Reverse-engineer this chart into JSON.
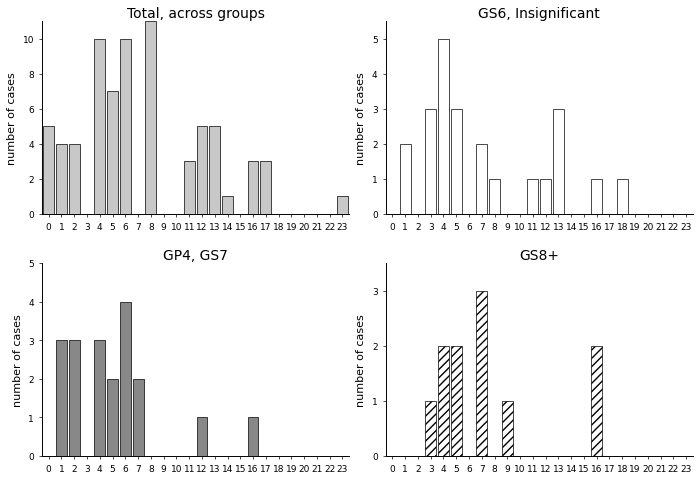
{
  "subplots": [
    {
      "title": "Total, across groups",
      "style": "light_gray_solid",
      "ylim": [
        0,
        11
      ],
      "yticks": [
        0,
        2,
        4,
        6,
        8,
        10
      ],
      "data": [
        5,
        4,
        4,
        0,
        10,
        7,
        10,
        0,
        11,
        0,
        0,
        3,
        5,
        5,
        1,
        0,
        3,
        3,
        0,
        0,
        0,
        0,
        0,
        1
      ]
    },
    {
      "title": "GS6, Insignificant",
      "style": "white_outline",
      "ylim": [
        0,
        5.5
      ],
      "yticks": [
        0,
        1,
        2,
        3,
        4,
        5
      ],
      "data": [
        0,
        2,
        0,
        3,
        5,
        3,
        0,
        2,
        1,
        0,
        0,
        1,
        1,
        3,
        0,
        0,
        1,
        0,
        1,
        0,
        0,
        0,
        0,
        0
      ]
    },
    {
      "title": "GP4, GS7",
      "style": "dark_gray_solid",
      "ylim": [
        0,
        5
      ],
      "yticks": [
        0,
        1,
        2,
        3,
        4,
        5
      ],
      "data": [
        0,
        3,
        3,
        0,
        3,
        2,
        4,
        2,
        0,
        0,
        0,
        0,
        1,
        0,
        0,
        0,
        1,
        0,
        0,
        0,
        0,
        0,
        0,
        0
      ]
    },
    {
      "title": "GS8+",
      "style": "hatched",
      "ylim": [
        0,
        3.5
      ],
      "yticks": [
        0,
        1,
        2,
        3
      ],
      "data": [
        0,
        0,
        0,
        1,
        2,
        2,
        0,
        3,
        0,
        1,
        0,
        0,
        0,
        0,
        0,
        0,
        2,
        0,
        0,
        0,
        0,
        0,
        0,
        0
      ]
    }
  ],
  "ylabel": "number of cases",
  "xtick_labels": [
    "0",
    "1",
    "2",
    "3",
    "4",
    "5",
    "6",
    "7",
    "8",
    "9",
    "10",
    "11",
    "12",
    "13",
    "14",
    "15",
    "16",
    "17",
    "18",
    "19",
    "20",
    "21",
    "22",
    "23"
  ],
  "xlim": [
    -0.5,
    23.5
  ],
  "background_color": "#ffffff",
  "tick_fontsize": 6.5,
  "label_fontsize": 8,
  "title_fontsize": 10
}
